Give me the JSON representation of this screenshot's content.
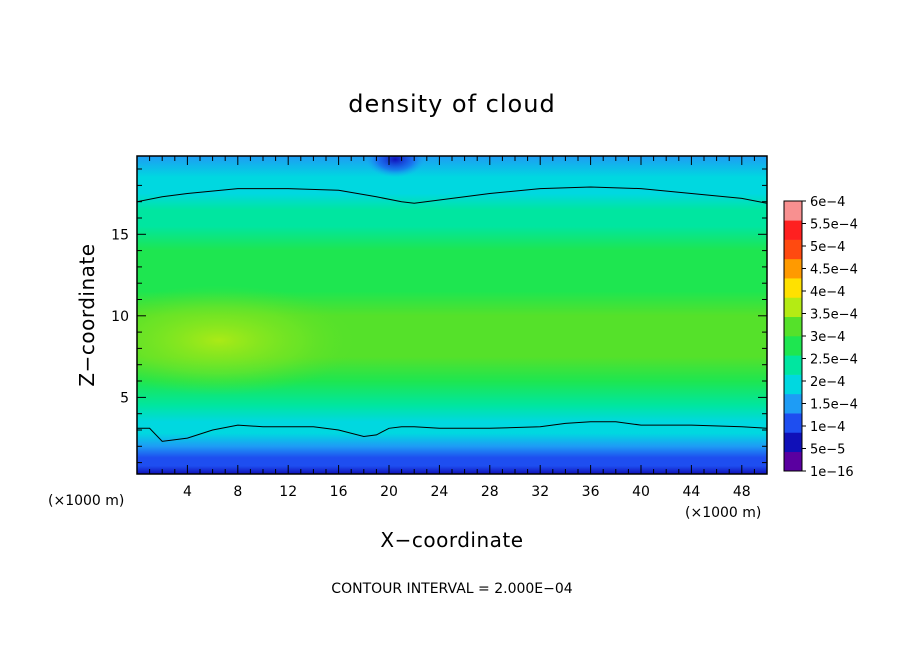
{
  "chart_data": {
    "type": "heatmap",
    "title": "density of cloud",
    "xlabel": "X−coordinate",
    "ylabel": "Z−coordinate",
    "x_unit": "(×1000 m)",
    "y_unit": "(×1000 m)",
    "xlim": [
      0,
      50
    ],
    "ylim": [
      0.3,
      19.8
    ],
    "x_ticks": [
      "4",
      "8",
      "12",
      "16",
      "20",
      "24",
      "28",
      "32",
      "36",
      "40",
      "44",
      "48"
    ],
    "y_ticks": [
      "5",
      "10",
      "15"
    ],
    "x_tick_values": [
      4,
      8,
      12,
      16,
      20,
      24,
      28,
      32,
      36,
      40,
      44,
      48
    ],
    "y_tick_values": [
      5,
      10,
      15
    ],
    "colorbar": {
      "labels": [
        "1e−16",
        "5e−5",
        "1e−4",
        "1.5e−4",
        "2e−4",
        "2.5e−4",
        "3e−4",
        "3.5e−4",
        "4e−4",
        "4.5e−4",
        "5e−4",
        "5.5e−4",
        "6e−4"
      ],
      "levels": [
        1e-16,
        5e-05,
        0.0001,
        0.00015,
        0.0002,
        0.00025,
        0.0003,
        0.00035,
        0.0004,
        0.00045,
        0.0005,
        0.00055,
        0.0006
      ],
      "colors": [
        "#5a00a0",
        "#1010b8",
        "#1e4ef0",
        "#1e9cf5",
        "#00d8e0",
        "#00e6a0",
        "#1ee650",
        "#55e12a",
        "#b4eb14",
        "#ffe100",
        "#ff9a00",
        "#ff4a10",
        "#ff2020",
        "#f89090"
      ]
    },
    "vertical_profile": {
      "z": [
        0.3,
        0.8,
        1.3,
        2.0,
        2.8,
        3.5,
        4.5,
        6.0,
        7.5,
        8.5,
        10.0,
        11.5,
        12.5,
        14.0,
        15.5,
        16.5,
        17.5,
        18.5,
        19.8
      ],
      "value": [
        2e-05,
        6e-05,
        9e-05,
        0.000125,
        0.00016,
        0.000195,
        0.00024,
        0.00027,
        0.00031,
        0.00032,
        0.000305,
        0.00029,
        0.00028,
        0.00026,
        0.000235,
        0.000215,
        0.00019,
        0.00016,
        0.000115
      ]
    },
    "contour_lines": [
      {
        "level": 0.0002,
        "x": [
          0,
          2,
          4,
          8,
          12,
          16,
          19,
          21,
          22,
          24,
          28,
          32,
          36,
          40,
          44,
          48,
          50
        ],
        "z": [
          17.0,
          17.3,
          17.5,
          17.8,
          17.8,
          17.7,
          17.3,
          17.0,
          16.9,
          17.1,
          17.5,
          17.8,
          17.9,
          17.8,
          17.5,
          17.2,
          16.9
        ]
      },
      {
        "level": 0.0002,
        "x": [
          0,
          1,
          2,
          4,
          6,
          8,
          10,
          12,
          14,
          16,
          18,
          19,
          20,
          21,
          22,
          24,
          28,
          32,
          34,
          36,
          38,
          40,
          44,
          48,
          50
        ],
        "z": [
          3.1,
          3.1,
          2.3,
          2.5,
          3.0,
          3.3,
          3.2,
          3.2,
          3.2,
          3.0,
          2.6,
          2.7,
          3.1,
          3.2,
          3.2,
          3.1,
          3.1,
          3.2,
          3.4,
          3.5,
          3.5,
          3.3,
          3.3,
          3.2,
          3.1
        ]
      }
    ],
    "features": [
      {
        "type": "minimum",
        "x": 20.5,
        "z": 19.6,
        "value": 0.0001
      },
      {
        "type": "maximum",
        "x": 6.5,
        "z": 8.5,
        "value": 0.00036
      }
    ],
    "annotation": "CONTOUR INTERVAL =  2.000E−04"
  }
}
